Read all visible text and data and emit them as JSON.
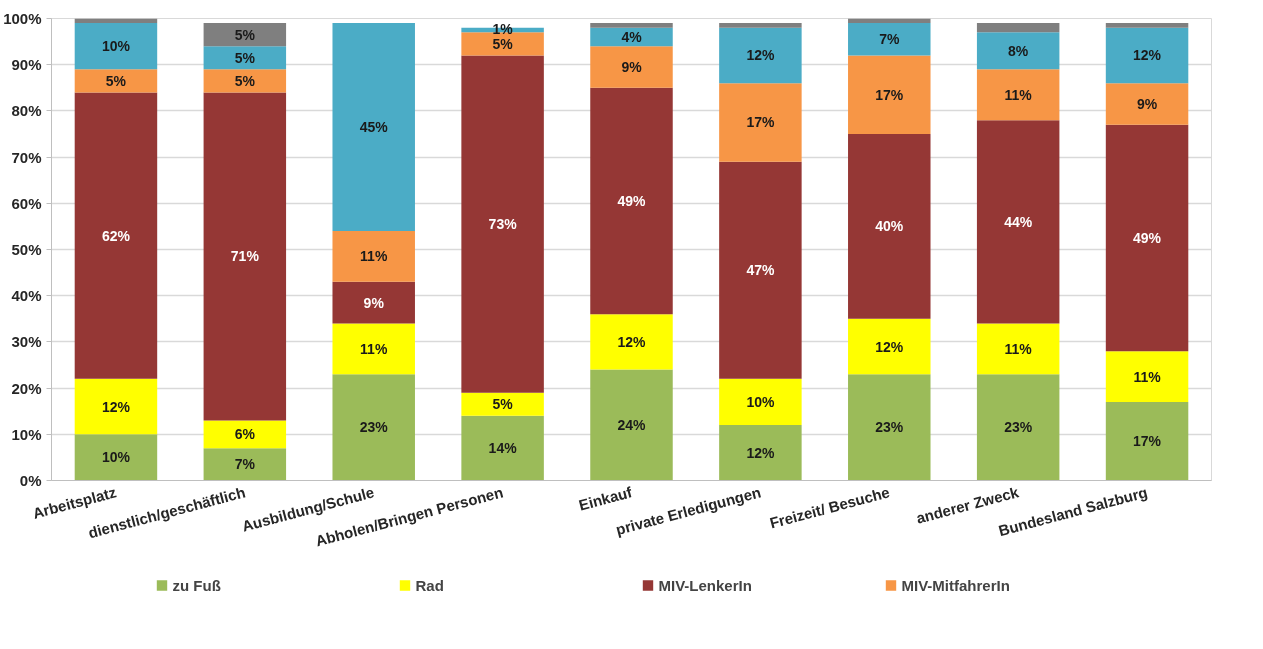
{
  "chart_data": {
    "type": "bar",
    "stacked": true,
    "categories": [
      "Arbeitsplatz",
      "dienstlich/geschäftlich",
      "Ausbildung/Schule",
      "Abholen/Bringen Personen",
      "Einkauf",
      "private Erledigungen",
      "Freizeit/ Besuche",
      "anderer Zweck",
      "Bundesland Salzburg"
    ],
    "series": [
      {
        "name": "zu Fuß",
        "color": "#9bbb59",
        "values": [
          10,
          7,
          23,
          14,
          24,
          12,
          23,
          23,
          17
        ],
        "value_labels": [
          "10%",
          "7%",
          "23%",
          "14%",
          "24%",
          "12%",
          "23%",
          "23%",
          "17%"
        ]
      },
      {
        "name": "Rad",
        "color": "#ffff00",
        "values": [
          12,
          6,
          11,
          5,
          12,
          10,
          12,
          11,
          11
        ],
        "value_labels": [
          "12%",
          "6%",
          "11%",
          "5%",
          "12%",
          "10%",
          "12%",
          "11%",
          "11%"
        ]
      },
      {
        "name": "MIV-LenkerIn",
        "color": "#953735",
        "values": [
          62,
          71,
          9,
          73,
          49,
          47,
          40,
          44,
          49
        ],
        "value_labels": [
          "62%",
          "71%",
          "9%",
          "73%",
          "49%",
          "47%",
          "40%",
          "44%",
          "49%"
        ]
      },
      {
        "name": "MIV-MitfahrerIn",
        "color": "#f79646",
        "values": [
          5,
          5,
          11,
          5,
          9,
          17,
          17,
          11,
          9
        ],
        "value_labels": [
          "5%",
          "5%",
          "11%",
          "5%",
          "9%",
          "17%",
          "17%",
          "11%",
          "9%"
        ]
      },
      {
        "color": "#4bacc6",
        "values": [
          10,
          5,
          45,
          1,
          4,
          12,
          7,
          8,
          12
        ],
        "value_labels": [
          "10%",
          "5%",
          "45%",
          "1%",
          "4%",
          "12%",
          "7%",
          "8%",
          "12%"
        ]
      },
      {
        "color": "#7f7f7f",
        "values": [
          1,
          5,
          null,
          null,
          1,
          1,
          1,
          2,
          1
        ],
        "value_labels": [
          null,
          "5%",
          null,
          null,
          null,
          null,
          null,
          null,
          null
        ]
      }
    ],
    "ylim": [
      0,
      100
    ],
    "yticks": [
      {
        "value": 0,
        "label": "0%"
      },
      {
        "value": 10,
        "label": "10%"
      },
      {
        "value": 20,
        "label": "20%"
      },
      {
        "value": 30,
        "label": "30%"
      },
      {
        "value": 40,
        "label": "40%"
      },
      {
        "value": 50,
        "label": "50%"
      },
      {
        "value": 60,
        "label": "60%"
      },
      {
        "value": 70,
        "label": "70%"
      },
      {
        "value": 80,
        "label": "80%"
      },
      {
        "value": 90,
        "label": "90%"
      },
      {
        "value": 100,
        "label": "100%"
      }
    ],
    "grid": "y",
    "legend": "bottom"
  }
}
